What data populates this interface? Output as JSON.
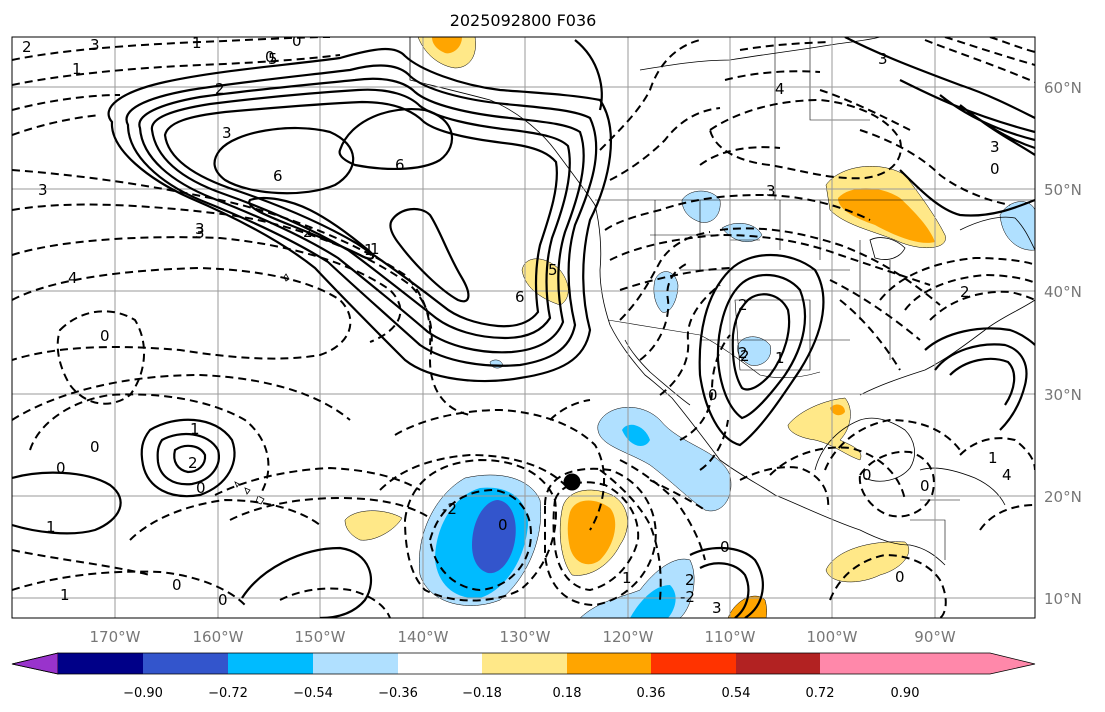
{
  "title": "2025092800 F036",
  "lon_labels": [
    "170°W",
    "160°W",
    "150°W",
    "140°W",
    "130°W",
    "120°W",
    "110°W",
    "100°W",
    "90°W"
  ],
  "lat_labels": [
    "60°N",
    "50°N",
    "40°N",
    "30°N",
    "20°N",
    "10°N"
  ],
  "colorbar": {
    "ticks": [
      "−0.90",
      "−0.72",
      "−0.54",
      "−0.36",
      "−0.18",
      "0.18",
      "0.36",
      "0.54",
      "0.72",
      "0.90"
    ],
    "colors": [
      "#9933cc",
      "#000088",
      "#3355cc",
      "#00bbff",
      "#b0e0ff",
      "#ffffff",
      "#ffe888",
      "#ffa500",
      "#ff3300",
      "#b22222",
      "#ff88aa"
    ]
  },
  "contour_labels": [
    "2",
    "3",
    "1",
    "1",
    "0",
    "2",
    "5",
    "3",
    "0",
    "6",
    "6",
    "3",
    "2",
    "1",
    "4",
    "6",
    "3",
    "3",
    "4",
    "0",
    "0",
    "1",
    "2",
    "0",
    "0",
    "1",
    "-2",
    "0",
    "0",
    "1",
    "2",
    "0",
    "2",
    "2",
    "1",
    "0",
    "3",
    "3",
    "2",
    "0",
    "0",
    "0",
    "1",
    "0",
    "3",
    "5",
    "-2",
    "0",
    "4",
    "2",
    "1",
    "3",
    "1"
  ],
  "marker": "storm-center"
}
